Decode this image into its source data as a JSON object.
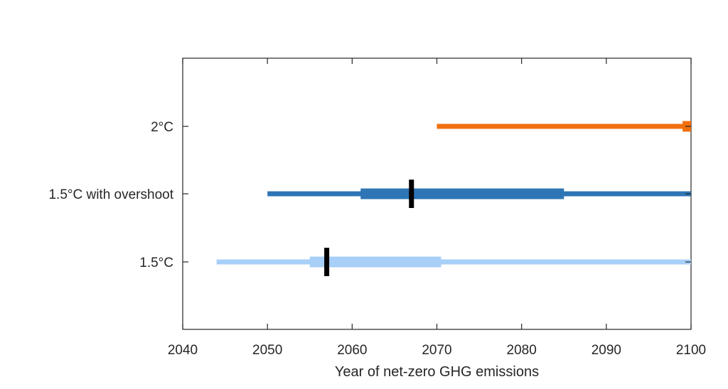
{
  "chart_data": {
    "type": "range",
    "title": "",
    "xlabel": "Year of net-zero GHG emissions",
    "ylabel": "",
    "xlim": [
      2040,
      2100
    ],
    "xticks": [
      "2040",
      "2050",
      "2060",
      "2070",
      "2080",
      "2090",
      "2100"
    ],
    "grid": false,
    "legend": "none",
    "categories": [
      "2°C",
      "1.5°C with overshoot",
      "1.5°C"
    ],
    "series": [
      {
        "category": "2°C",
        "color": "#f07010",
        "full_range": [
          2070,
          2100
        ],
        "interquartile": [
          2099,
          2100
        ],
        "median": null
      },
      {
        "category": "1.5°C with overshoot",
        "color": "#2e75b6",
        "full_range": [
          2050,
          2100
        ],
        "interquartile": [
          2061,
          2085
        ],
        "median": 2067
      },
      {
        "category": "1.5°C",
        "color": "#a7cff8",
        "full_range": [
          2044,
          2100
        ],
        "interquartile": [
          2055,
          2070.5
        ],
        "median": 2057
      }
    ]
  }
}
